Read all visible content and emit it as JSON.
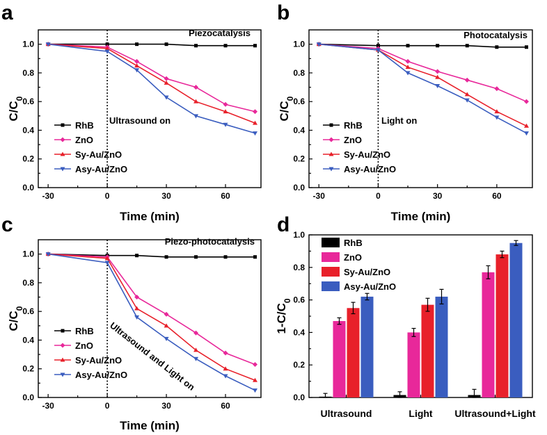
{
  "colors": {
    "RhB": "#000000",
    "ZnO": "#e8289a",
    "Sy-Au/ZnO": "#e8202a",
    "Asy-Au/ZnO": "#3a5dbf"
  },
  "chart_data": [
    {
      "type": "line",
      "panel": "a",
      "title": "Piezocatalysis",
      "annotation": "Ultrasound on",
      "xlabel": "Time (min)",
      "ylabel": "C/C0",
      "ylabel_main": "C/C",
      "ylabel_sub": "0",
      "xlim": [
        -35,
        78
      ],
      "ylim": [
        0,
        1.1
      ],
      "xticks": [
        -30,
        0,
        30,
        60
      ],
      "xtick_labels": [
        "-30",
        "0",
        "30",
        "60"
      ],
      "yticks": [
        0,
        0.2,
        0.4,
        0.6,
        0.8,
        1.0
      ],
      "ytick_labels": [
        "0.0",
        "0.2",
        "0.4",
        "0.6",
        "0.8",
        "1.0"
      ],
      "x": [
        -30,
        0,
        15,
        30,
        45,
        60,
        75
      ],
      "series": [
        {
          "name": "RhB",
          "marker": "square",
          "values": [
            1.0,
            1.0,
            1.0,
            1.0,
            0.99,
            0.99,
            0.99
          ]
        },
        {
          "name": "ZnO",
          "marker": "diamond",
          "values": [
            1.0,
            0.98,
            0.88,
            0.76,
            0.7,
            0.58,
            0.53
          ]
        },
        {
          "name": "Sy-Au/ZnO",
          "marker": "triangle-up",
          "values": [
            1.0,
            0.97,
            0.85,
            0.73,
            0.6,
            0.53,
            0.45
          ]
        },
        {
          "name": "Asy-Au/ZnO",
          "marker": "triangle-down",
          "values": [
            1.0,
            0.95,
            0.82,
            0.63,
            0.5,
            0.44,
            0.38
          ]
        }
      ]
    },
    {
      "type": "line",
      "panel": "b",
      "title": "Photocatalysis",
      "annotation": "Light on",
      "xlabel": "Time (min)",
      "ylabel": "C/C0",
      "ylabel_main": "C/C",
      "ylabel_sub": "0",
      "xlim": [
        -35,
        78
      ],
      "ylim": [
        0,
        1.1
      ],
      "xticks": [
        -30,
        0,
        30,
        60
      ],
      "xtick_labels": [
        "-30",
        "0",
        "30",
        "60"
      ],
      "yticks": [
        0,
        0.2,
        0.4,
        0.6,
        0.8,
        1.0
      ],
      "ytick_labels": [
        "0.0",
        "0.2",
        "0.4",
        "0.6",
        "0.8",
        "1.0"
      ],
      "x": [
        -30,
        0,
        15,
        30,
        45,
        60,
        75
      ],
      "series": [
        {
          "name": "RhB",
          "marker": "square",
          "values": [
            1.0,
            0.99,
            0.99,
            0.99,
            0.99,
            0.98,
            0.98
          ]
        },
        {
          "name": "ZnO",
          "marker": "diamond",
          "values": [
            1.0,
            0.97,
            0.88,
            0.81,
            0.75,
            0.69,
            0.6
          ]
        },
        {
          "name": "Sy-Au/ZnO",
          "marker": "triangle-up",
          "values": [
            1.0,
            0.96,
            0.84,
            0.77,
            0.65,
            0.53,
            0.43
          ]
        },
        {
          "name": "Asy-Au/ZnO",
          "marker": "triangle-down",
          "values": [
            1.0,
            0.96,
            0.8,
            0.71,
            0.61,
            0.49,
            0.38
          ]
        }
      ]
    },
    {
      "type": "line",
      "panel": "c",
      "title": "Piezo-photocatalysis",
      "annotation": "Ultrasound and Light on",
      "xlabel": "Time (min)",
      "ylabel": "C/C0",
      "ylabel_main": "C/C",
      "ylabel_sub": "0",
      "xlim": [
        -35,
        78
      ],
      "ylim": [
        0,
        1.1
      ],
      "xticks": [
        -30,
        0,
        30,
        60
      ],
      "xtick_labels": [
        "-30",
        "0",
        "30",
        "60"
      ],
      "yticks": [
        0,
        0.2,
        0.4,
        0.6,
        0.8,
        1.0
      ],
      "ytick_labels": [
        "0.0",
        "0.2",
        "0.4",
        "0.6",
        "0.8",
        "1.0"
      ],
      "x": [
        -30,
        0,
        15,
        30,
        45,
        60,
        75
      ],
      "series": [
        {
          "name": "RhB",
          "marker": "square",
          "values": [
            1.0,
            0.99,
            0.99,
            0.98,
            0.98,
            0.98,
            0.98
          ]
        },
        {
          "name": "ZnO",
          "marker": "diamond",
          "values": [
            1.0,
            0.98,
            0.7,
            0.58,
            0.45,
            0.31,
            0.23
          ]
        },
        {
          "name": "Sy-Au/ZnO",
          "marker": "triangle-up",
          "values": [
            1.0,
            0.97,
            0.62,
            0.5,
            0.33,
            0.2,
            0.12
          ]
        },
        {
          "name": "Asy-Au/ZnO",
          "marker": "triangle-down",
          "values": [
            1.0,
            0.94,
            0.56,
            0.41,
            0.27,
            0.15,
            0.05
          ]
        }
      ]
    },
    {
      "type": "bar",
      "panel": "d",
      "xlabel": "",
      "ylabel": "1-C/C0",
      "ylabel_main": "1-C/C",
      "ylabel_sub": "0",
      "ylim": [
        0,
        1.0
      ],
      "yticks": [
        0,
        0.2,
        0.4,
        0.6,
        0.8,
        1.0
      ],
      "ytick_labels": [
        "0.0",
        "0.2",
        "0.4",
        "0.6",
        "0.8",
        "1.0"
      ],
      "categories": [
        "Ultrasound",
        "Light",
        "Ultrasound+Light"
      ],
      "series": [
        {
          "name": "RhB",
          "values": [
            0.005,
            0.015,
            0.015
          ],
          "errors": [
            0.02,
            0.02,
            0.035
          ]
        },
        {
          "name": "ZnO",
          "values": [
            0.47,
            0.4,
            0.77
          ],
          "errors": [
            0.02,
            0.025,
            0.04
          ]
        },
        {
          "name": "Sy-Au/ZnO",
          "values": [
            0.55,
            0.57,
            0.88
          ],
          "errors": [
            0.035,
            0.04,
            0.02
          ]
        },
        {
          "name": "Asy-Au/ZnO",
          "values": [
            0.62,
            0.62,
            0.95
          ],
          "errors": [
            0.02,
            0.045,
            0.015
          ]
        }
      ]
    }
  ]
}
